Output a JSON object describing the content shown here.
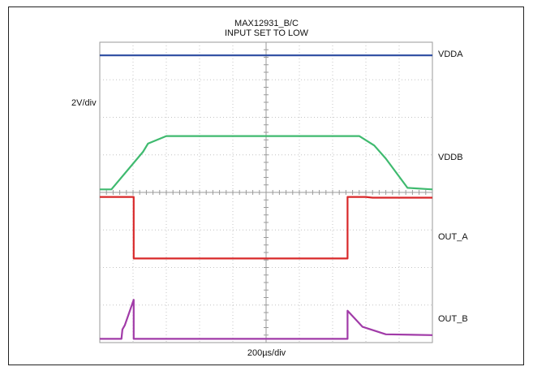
{
  "chart_data": {
    "type": "line",
    "title": "MAX12931_B/C",
    "subtitle": "INPUT SET TO LOW",
    "xlabel": "200µs/div",
    "ylabel": "2V/div",
    "x_divisions": 10,
    "y_divisions": 8,
    "grid": true,
    "series": [
      {
        "name": "VDDA",
        "color": "#2a4aa0",
        "points": [
          [
            0,
            7.65
          ],
          [
            10,
            7.65
          ]
        ]
      },
      {
        "name": "VDDB",
        "color": "#3fba6f",
        "points": [
          [
            0,
            4.08
          ],
          [
            0.35,
            4.08
          ],
          [
            1.3,
            5.08
          ],
          [
            1.45,
            5.3
          ],
          [
            2.0,
            5.5
          ],
          [
            7.8,
            5.5
          ],
          [
            8.25,
            5.25
          ],
          [
            8.6,
            4.9
          ],
          [
            9.25,
            4.12
          ],
          [
            10,
            4.08
          ]
        ]
      },
      {
        "name": "OUT_A",
        "color": "#d8282a",
        "points": [
          [
            0,
            3.88
          ],
          [
            1.02,
            3.88
          ],
          [
            1.02,
            2.24
          ],
          [
            3.5,
            2.24
          ],
          [
            7.45,
            2.24
          ],
          [
            7.45,
            3.88
          ],
          [
            8.0,
            3.88
          ],
          [
            8.2,
            3.86
          ],
          [
            10,
            3.86
          ]
        ]
      },
      {
        "name": "OUT_B",
        "color": "#a13ba8",
        "points": [
          [
            0,
            0.1
          ],
          [
            0.65,
            0.1
          ],
          [
            0.68,
            0.35
          ],
          [
            0.75,
            0.46
          ],
          [
            1.02,
            1.14
          ],
          [
            1.02,
            0.1
          ],
          [
            7.45,
            0.1
          ],
          [
            7.45,
            0.85
          ],
          [
            7.9,
            0.42
          ],
          [
            8.6,
            0.22
          ],
          [
            10,
            0.2
          ]
        ]
      }
    ]
  }
}
